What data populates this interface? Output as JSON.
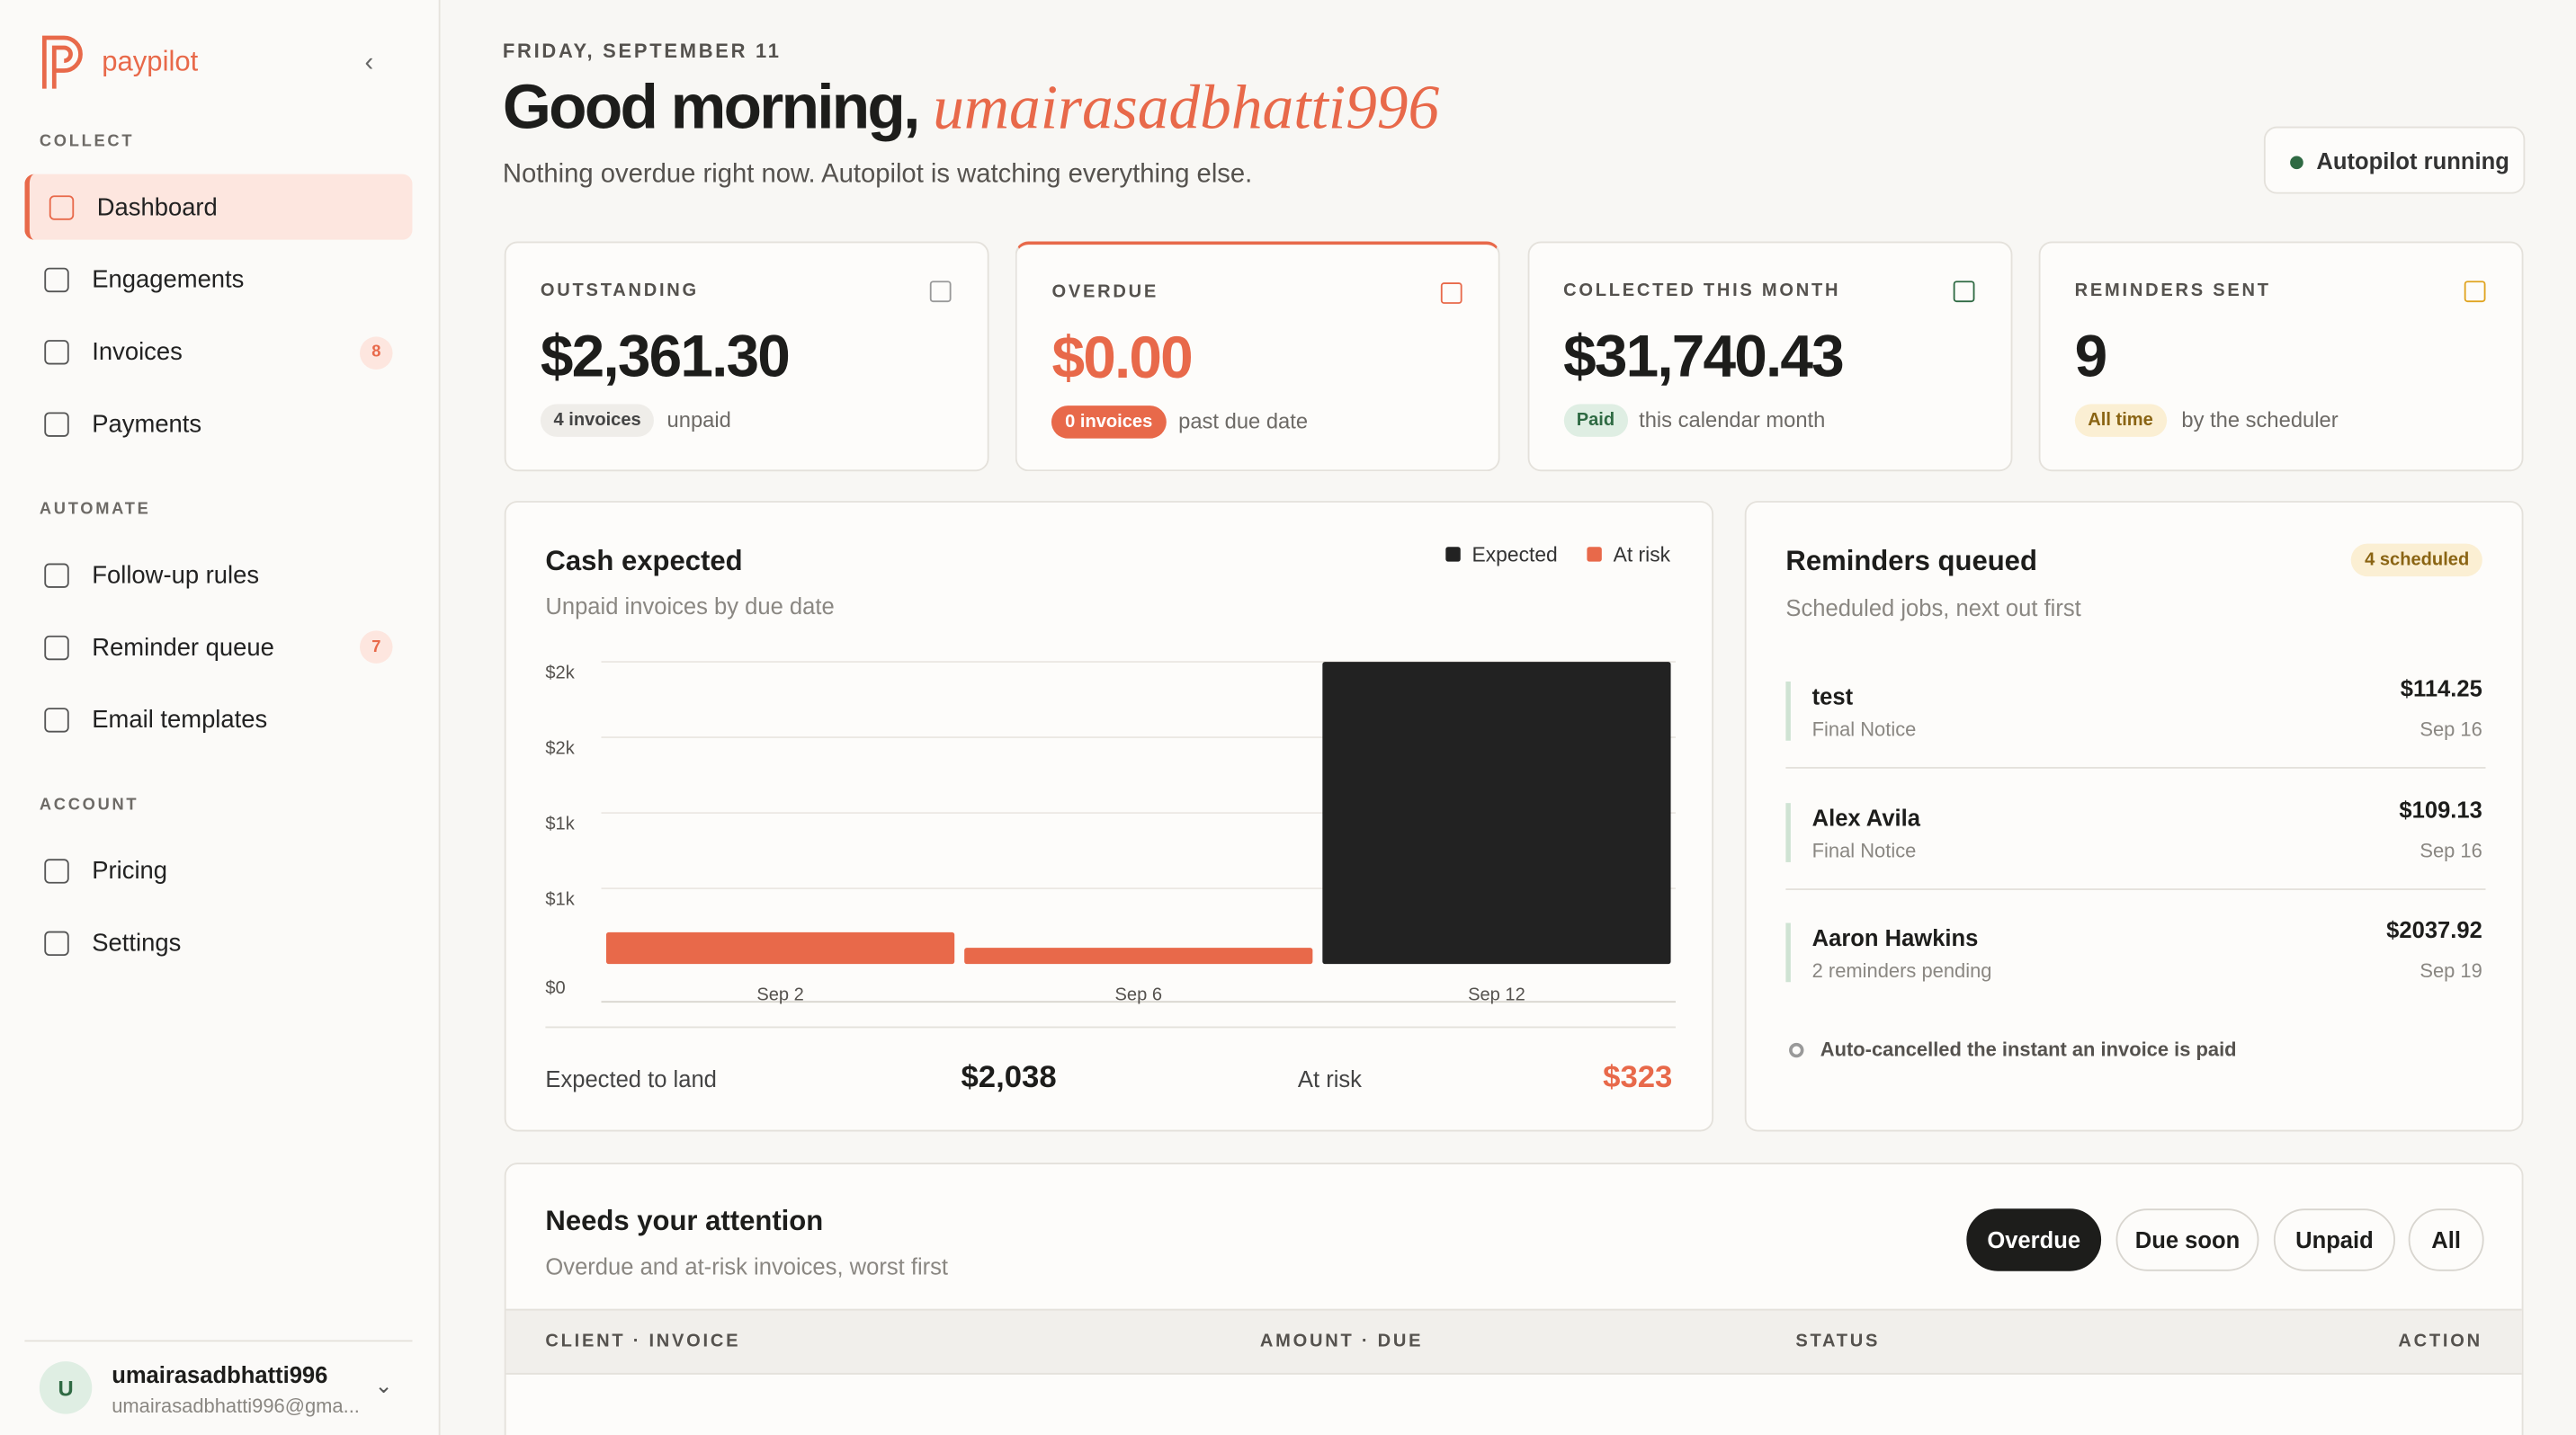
{
  "brand": "paypilot",
  "sidebar": {
    "sections": [
      {
        "title": "COLLECT",
        "items": [
          {
            "label": "Dashboard"
          },
          {
            "label": "Engagements"
          },
          {
            "label": "Invoices",
            "badge": "8"
          },
          {
            "label": "Payments"
          }
        ]
      },
      {
        "title": "AUTOMATE",
        "items": [
          {
            "label": "Follow-up rules"
          },
          {
            "label": "Reminder queue",
            "badge": "7"
          },
          {
            "label": "Email templates"
          }
        ]
      },
      {
        "title": "ACCOUNT",
        "items": [
          {
            "label": "Pricing"
          },
          {
            "label": "Settings"
          }
        ]
      }
    ],
    "user": {
      "initial": "U",
      "name": "umairasadbhatti996",
      "email": "umairasadbhatti996@gma..."
    }
  },
  "header": {
    "date": "FRIDAY, SEPTEMBER 11",
    "greeting": "Good morning,",
    "name": "umairasadbhatti996",
    "subtitle": "Nothing overdue right now. Autopilot is watching everything else.",
    "status": "Autopilot running"
  },
  "stats": [
    {
      "label": "OUTSTANDING",
      "value": "$2,361.30",
      "tag": "4 invoices",
      "note": "unpaid"
    },
    {
      "label": "OVERDUE",
      "value": "$0.00",
      "tag": "0 invoices",
      "note": "past due date"
    },
    {
      "label": "COLLECTED THIS MONTH",
      "value": "$31,740.43",
      "tag": "Paid",
      "note": "this calendar month"
    },
    {
      "label": "REMINDERS SENT",
      "value": "9",
      "tag": "All time",
      "note": "by the scheduler"
    }
  ],
  "cash_chart": {
    "type": "bar",
    "stacked": true,
    "title": "Cash expected",
    "subtitle": "Unpaid invoices by due date",
    "categories": [
      "Sep 2",
      "Sep 6",
      "Sep 12"
    ],
    "series": [
      {
        "name": "Expected",
        "color": "#222222",
        "values": [
          0,
          0,
          2037.92
        ]
      },
      {
        "name": "At risk",
        "color": "#e8694a",
        "values": [
          214.25,
          109.13,
          0
        ]
      }
    ],
    "ylim": [
      0,
      2037.92
    ],
    "yticks": [
      {
        "value": 0,
        "label": "$0"
      },
      {
        "value": 509.48,
        "label": "$1k"
      },
      {
        "value": 1018.96,
        "label": "$1k"
      },
      {
        "value": 1528.44,
        "label": "$2k"
      },
      {
        "value": 2037.92,
        "label": "$2k"
      }
    ],
    "grid": true,
    "summary": {
      "expected_label": "Expected to land",
      "expected_value": "$2,038",
      "risk_label": "At risk",
      "risk_value": "$323"
    }
  },
  "reminders": {
    "title": "Reminders queued",
    "badge": "4 scheduled",
    "subtitle": "Scheduled jobs, next out first",
    "items": [
      {
        "name": "test",
        "type": "Final Notice",
        "amount": "$114.25",
        "date": "Sep 16"
      },
      {
        "name": "Alex Avila",
        "type": "Final Notice",
        "amount": "$109.13",
        "date": "Sep 16"
      },
      {
        "name": "Aaron Hawkins",
        "type": "2 reminders pending",
        "amount": "$2037.92",
        "date": "Sep 19"
      }
    ],
    "footer": "Auto-cancelled the instant an invoice is paid"
  },
  "attention": {
    "title": "Needs your attention",
    "subtitle": "Overdue and at-risk invoices, worst first",
    "filters": [
      "Overdue",
      "Due soon",
      "Unpaid",
      "All"
    ],
    "columns": [
      "CLIENT · INVOICE",
      "AMOUNT · DUE",
      "STATUS",
      "ACTION"
    ]
  }
}
